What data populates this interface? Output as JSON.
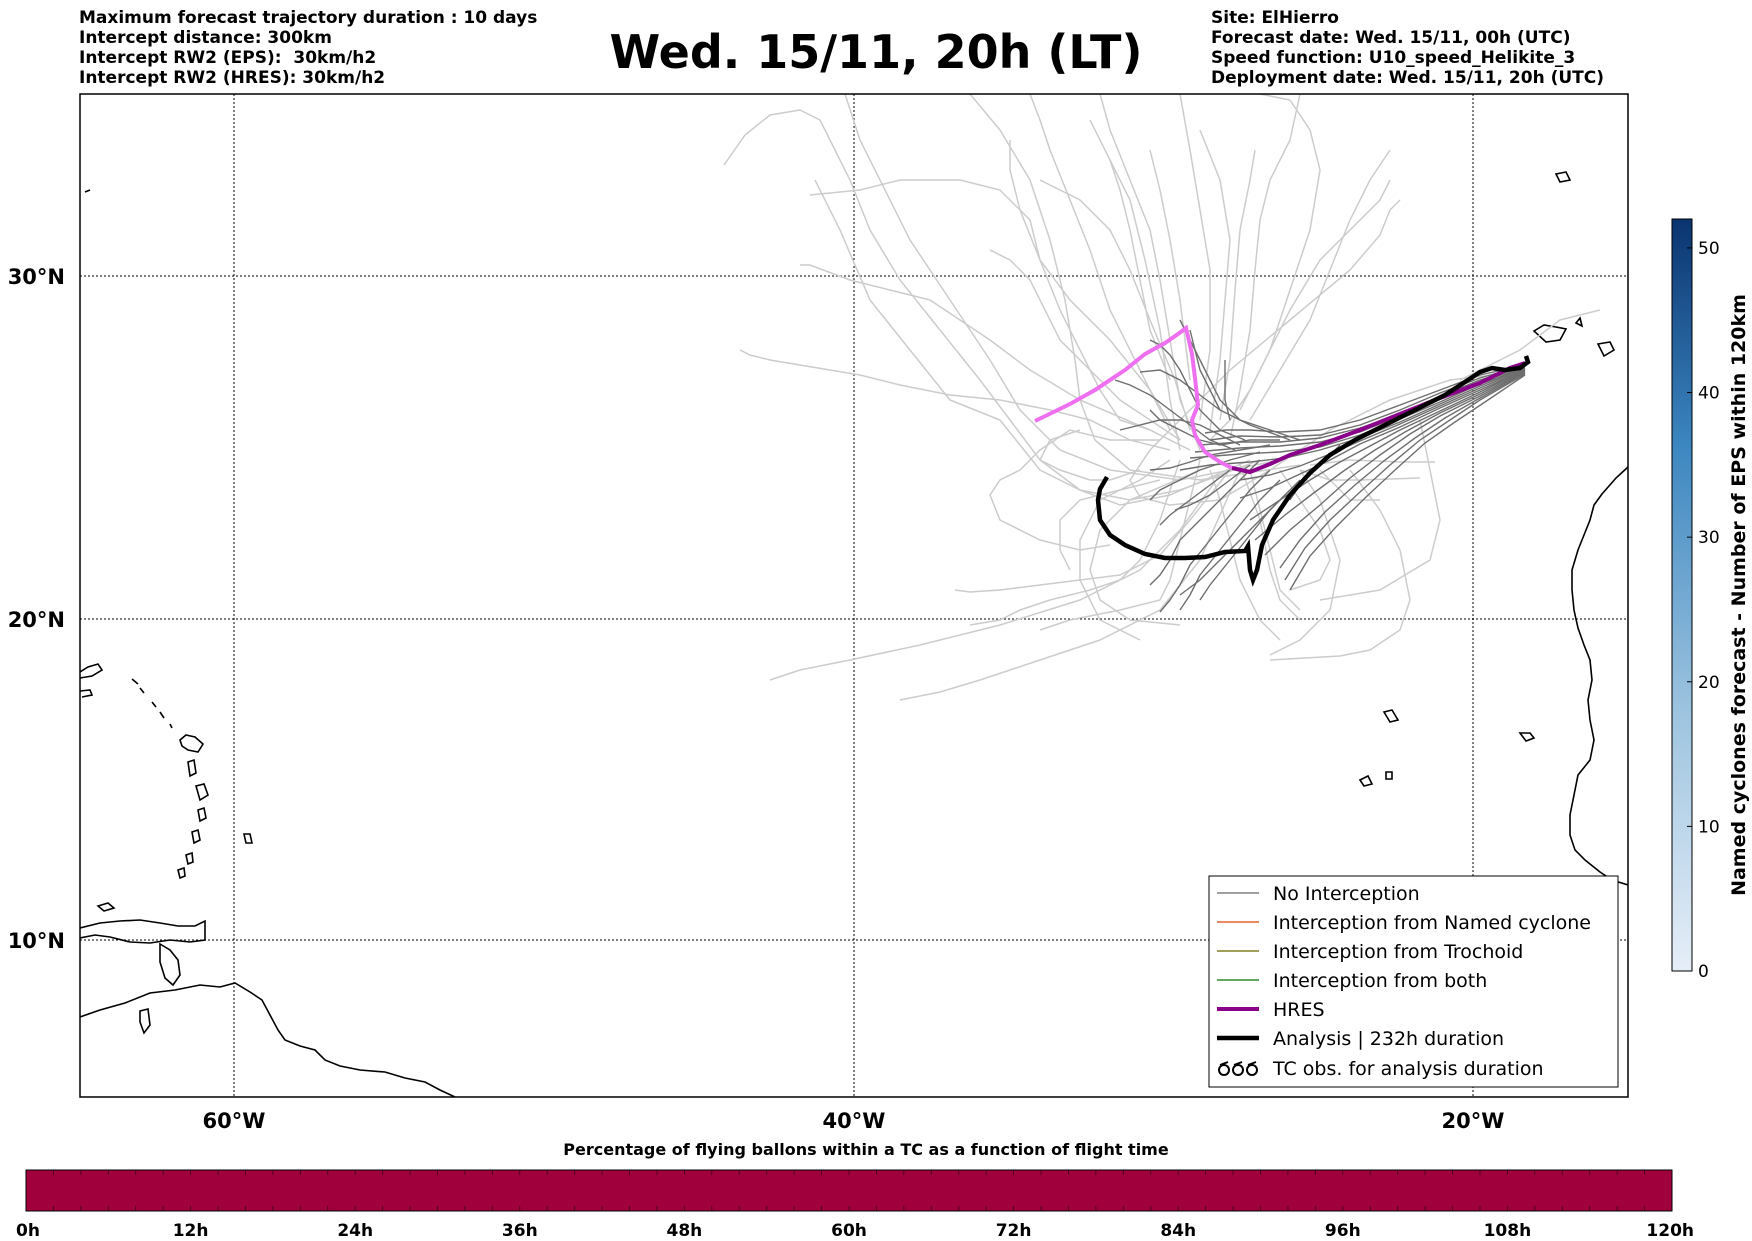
{
  "header": {
    "left_lines": [
      "Maximum forecast trajectory duration : 10 days",
      "Intercept distance: 300km",
      "Intercept RW2 (EPS):  30km/h2",
      "Intercept RW2 (HRES): 30km/h2"
    ],
    "title": "Wed. 15/11, 20h (LT)",
    "right_lines": [
      "Site: ElHierro",
      "Forecast date: Wed. 15/11, 00h (UTC)",
      "Speed function: U10_speed_Helikite_3",
      "Deployment date: Wed. 15/11, 20h (UTC)"
    ]
  },
  "map": {
    "lat_labels": [
      "30°N",
      "20°N",
      "10°N"
    ],
    "lon_labels": [
      "60°W",
      "40°W",
      "20°W"
    ]
  },
  "legend": {
    "items": [
      {
        "label": "No Interception",
        "color": "#808080"
      },
      {
        "label": "Interception from Named cyclone",
        "color": "#e8602c"
      },
      {
        "label": "Interception from Trochoid",
        "color": "#808020"
      },
      {
        "label": "Interception from both",
        "color": "#2e8b2e"
      },
      {
        "label": "HRES",
        "color": "#8b008b"
      },
      {
        "label": "Analysis | 232h duration",
        "color": "#000000"
      },
      {
        "label": "TC obs. for analysis duration",
        "icon": "cyclone-symbols-icon"
      }
    ]
  },
  "colorbar": {
    "title": "Named cyclones forecast - Number of EPS within 120km",
    "ticks": [
      "0",
      "10",
      "20",
      "30",
      "40",
      "50"
    ],
    "min": 0,
    "max": 52
  },
  "bottom_bar": {
    "title": "Percentage of flying ballons within a TC as a function of flight time",
    "ticks": [
      "0h",
      "12h",
      "24h",
      "36h",
      "48h",
      "60h",
      "72h",
      "84h",
      "96h",
      "108h",
      "120h"
    ],
    "color": "#a0003c"
  }
}
